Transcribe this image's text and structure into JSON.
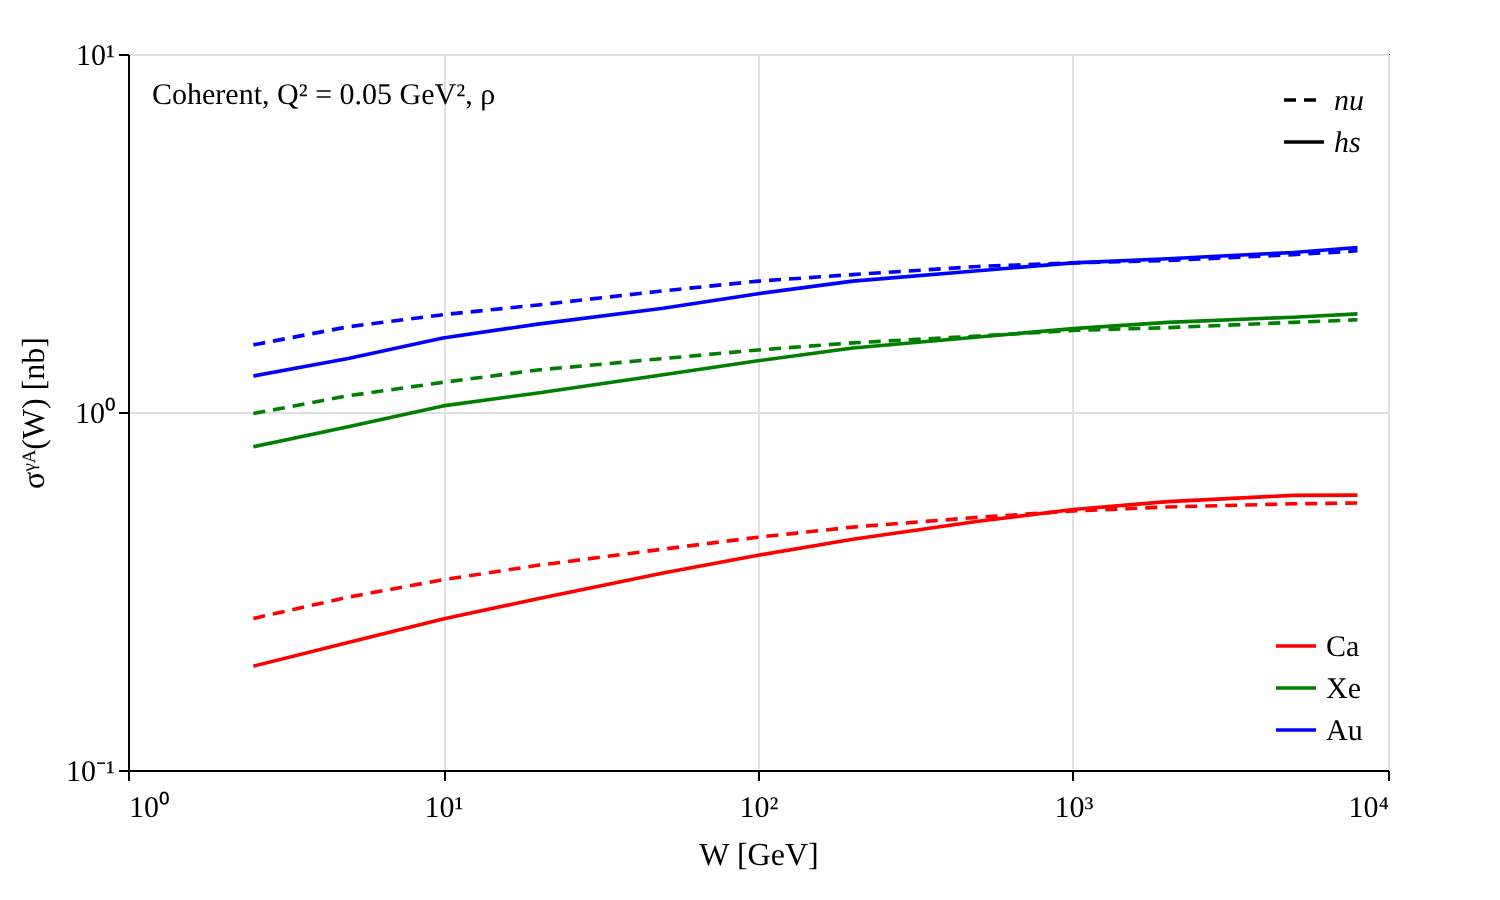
{
  "chart_data": {
    "type": "line",
    "annotations": [
      "Coherent, Q² = 0.05 GeV², ρ",
      "nu",
      "hs"
    ],
    "xlabel": "W [GeV]",
    "ylabel": "σᵞᴬ(W) [nb]",
    "log": "xy",
    "grid": true,
    "legend": "bottom right",
    "xlim": [
      1,
      10000
    ],
    "xticks": [
      {
        "value": 1,
        "label": "10⁰"
      },
      {
        "value": 10,
        "label": "10¹"
      },
      {
        "value": 100,
        "label": "10²"
      },
      {
        "value": 1000,
        "label": "10³"
      },
      {
        "value": 10000,
        "label": "10⁴"
      }
    ],
    "ylim": [
      0.1,
      10
    ],
    "yticks": [
      {
        "value": 0.1,
        "label": "10⁻¹"
      },
      {
        "value": 1,
        "label": "10⁰"
      },
      {
        "value": 10,
        "label": "10¹"
      }
    ],
    "x": [
      2.5,
      5,
      10,
      20,
      50,
      100,
      200,
      500,
      1000,
      2000,
      5000,
      8000
    ],
    "series": [
      {
        "line_style": "dashed",
        "color": "#ff0000",
        "values": [
          0.265,
          0.304,
          0.34,
          0.373,
          0.414,
          0.447,
          0.477,
          0.508,
          0.529,
          0.543,
          0.554,
          0.557
        ]
      },
      {
        "name": "Ca",
        "line_style": "solid",
        "color": "#ff0000",
        "values": [
          0.195,
          0.227,
          0.264,
          0.301,
          0.355,
          0.398,
          0.441,
          0.495,
          0.534,
          0.562,
          0.585,
          0.586
        ]
      },
      {
        "line_style": "dashed",
        "color": "#007f00",
        "values": [
          0.99,
          1.11,
          1.21,
          1.31,
          1.41,
          1.49,
          1.56,
          1.63,
          1.69,
          1.72,
          1.78,
          1.81
        ]
      },
      {
        "name": "Xe",
        "line_style": "solid",
        "color": "#007f00",
        "values": [
          0.8,
          0.91,
          1.04,
          1.13,
          1.27,
          1.39,
          1.51,
          1.62,
          1.71,
          1.78,
          1.84,
          1.88
        ]
      },
      {
        "line_style": "dashed",
        "color": "#0000ff",
        "values": [
          1.54,
          1.73,
          1.87,
          1.99,
          2.18,
          2.32,
          2.42,
          2.55,
          2.61,
          2.65,
          2.75,
          2.82
        ]
      },
      {
        "name": "Au",
        "line_style": "solid",
        "color": "#0000ff",
        "values": [
          1.26,
          1.41,
          1.61,
          1.76,
          1.95,
          2.14,
          2.32,
          2.48,
          2.61,
          2.68,
          2.79,
          2.88
        ]
      }
    ]
  }
}
